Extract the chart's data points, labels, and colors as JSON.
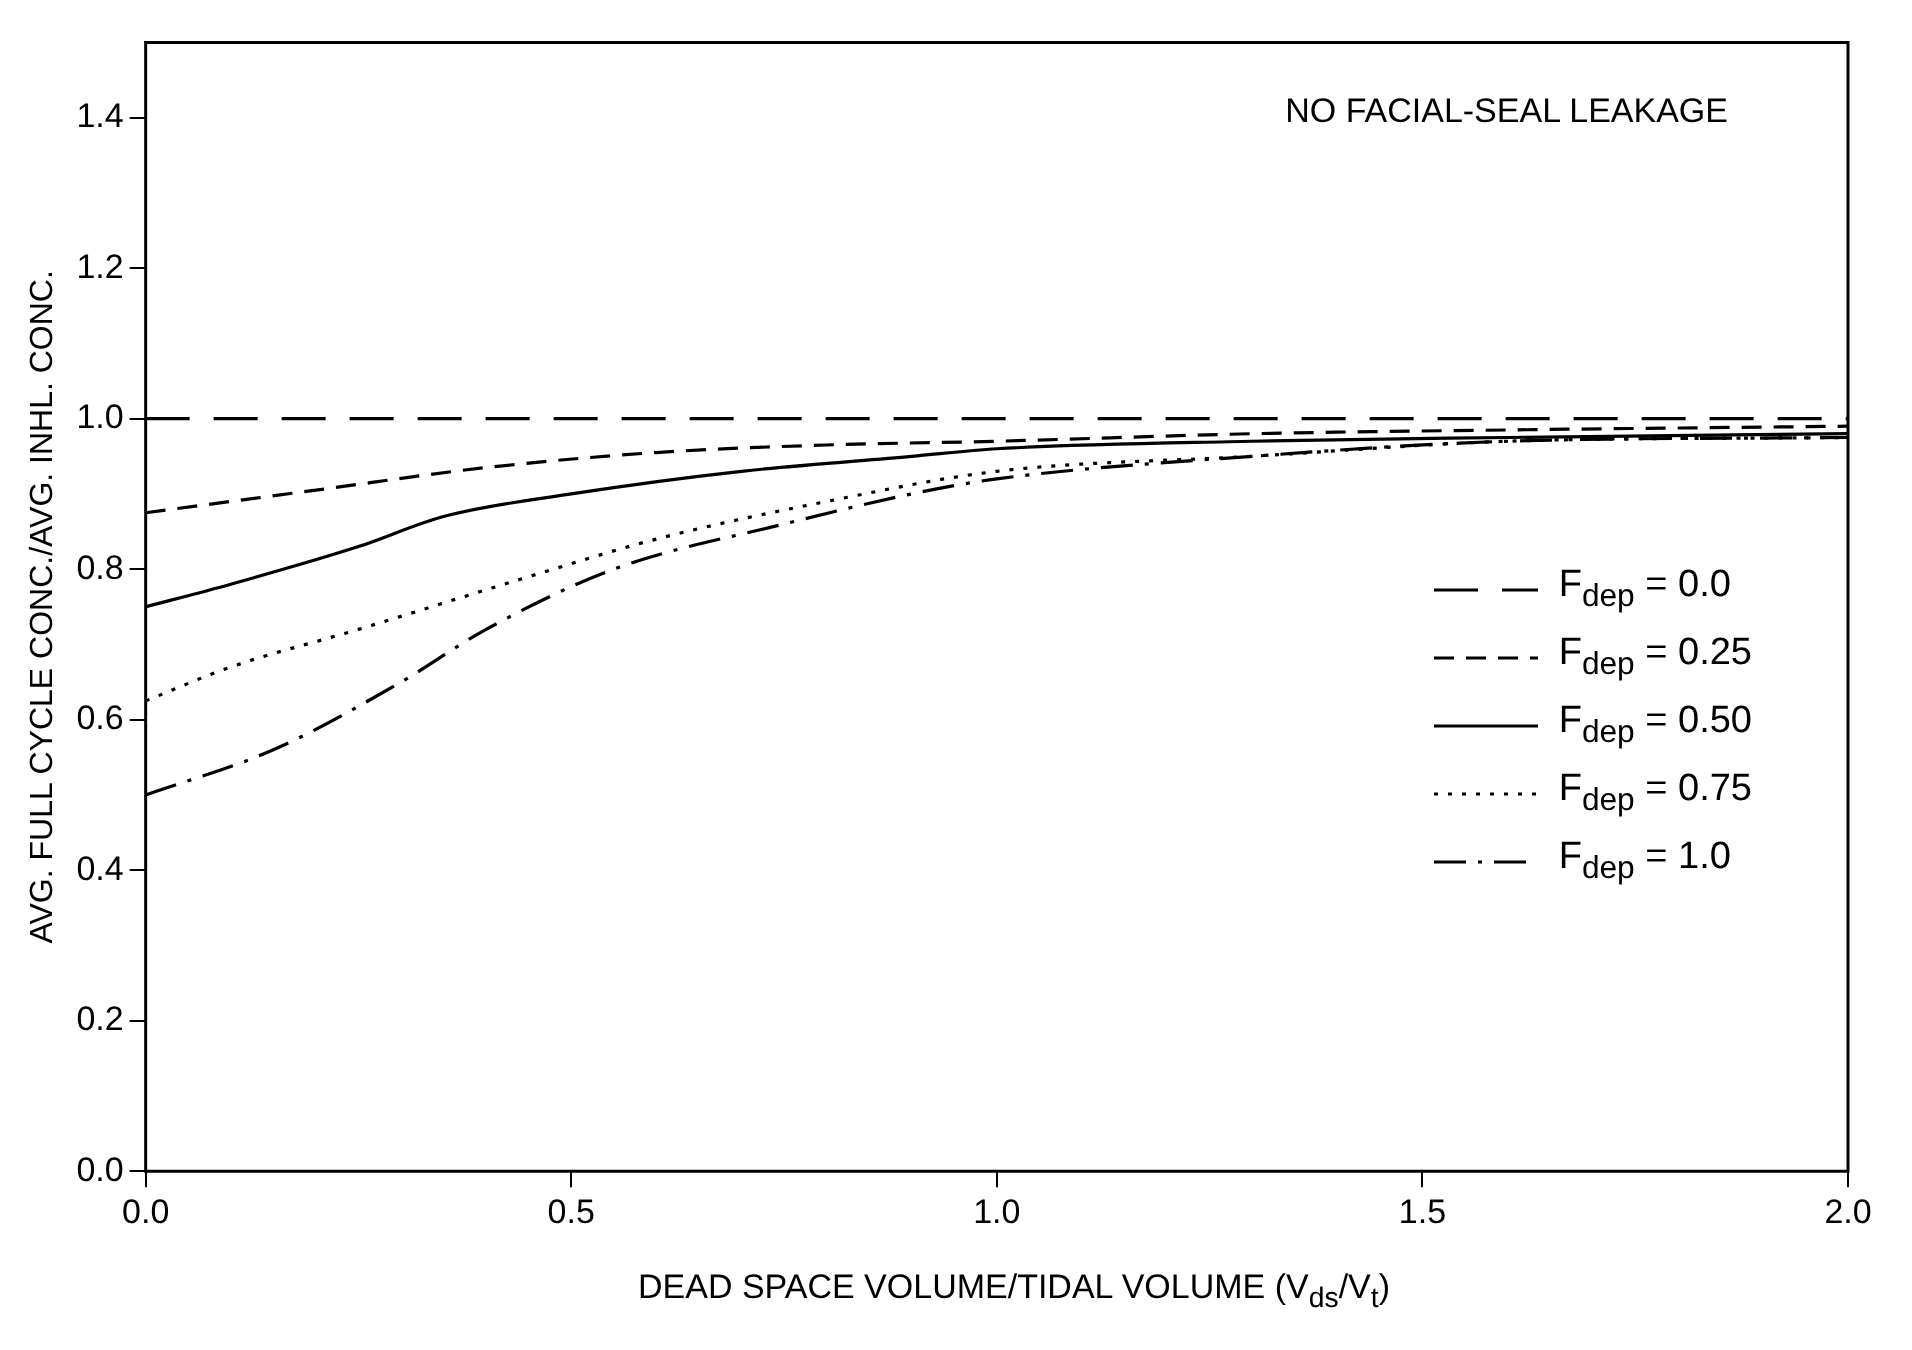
{
  "chart_data": {
    "type": "line",
    "ylabel": "AVG. FULL CYCLE CONC./AVG. INHL. CONC.",
    "xlabel": "DEAD SPACE VOLUME/TIDAL VOLUME (V$_{ds}$/V$_{t}$)",
    "annotations": [
      "NO FACIAL-SEAL LEAKAGE"
    ],
    "xlim": [
      0,
      2
    ],
    "xticks": [
      {
        "value": 0,
        "label": "0.0"
      },
      0.5,
      {
        "value": 1,
        "label": "1.0"
      },
      1.5,
      {
        "value": 2,
        "label": "2.0"
      }
    ],
    "ylim": [
      0,
      1.5
    ],
    "yticks": [
      {
        "value": 0,
        "label": "0.0"
      },
      0.2,
      0.4,
      0.6,
      0.8,
      {
        "value": 1,
        "label": "1.0"
      },
      1.2,
      1.4
    ],
    "grid": false,
    "legend": "right",
    "marker": "none",
    "series": [
      {
        "name": "F$_{dep}$ = 0.0",
        "color": "#000000",
        "line_style": "dashed",
        "x": [
          0,
          0.5,
          1,
          1.5,
          2
        ],
        "values": [
          1,
          1,
          1,
          1,
          1
        ]
      },
      {
        "name": "F$_{dep}$ = 0.25",
        "color": "#000000",
        "line_style": "dashed",
        "x": [
          0,
          0.2,
          0.4,
          0.6,
          0.8,
          1,
          1.3,
          1.6,
          2
        ],
        "values": [
          0.875,
          0.905,
          0.935,
          0.955,
          0.965,
          0.97,
          0.98,
          0.985,
          0.99
        ]
      },
      {
        "name": "F$_{dep}$ = 0.50",
        "color": "#000000",
        "line_style": "solid",
        "x": [
          0,
          0.1,
          0.25,
          0.35,
          0.5,
          0.7,
          0.9,
          1,
          1.3,
          1.6,
          2
        ],
        "values": [
          0.75,
          0.78,
          0.83,
          0.87,
          0.9,
          0.93,
          0.95,
          0.96,
          0.97,
          0.975,
          0.98
        ]
      },
      {
        "name": "F$_{dep}$ = 0.75",
        "color": "#000000",
        "line_style": "dotted",
        "x": [
          0,
          0.1,
          0.25,
          0.45,
          0.6,
          0.8,
          1,
          1.3,
          1.6,
          2
        ],
        "values": [
          0.625,
          0.67,
          0.72,
          0.79,
          0.84,
          0.89,
          0.93,
          0.95,
          0.97,
          0.975
        ]
      },
      {
        "name": "F$_{dep}$ = 1.0",
        "color": "#000000",
        "line_style": "dashdot",
        "x": [
          0,
          0.15,
          0.3,
          0.4,
          0.55,
          0.75,
          0.9,
          1,
          1.3,
          1.6,
          2
        ],
        "values": [
          0.5,
          0.56,
          0.65,
          0.72,
          0.8,
          0.86,
          0.9,
          0.92,
          0.95,
          0.97,
          0.975
        ]
      }
    ]
  }
}
